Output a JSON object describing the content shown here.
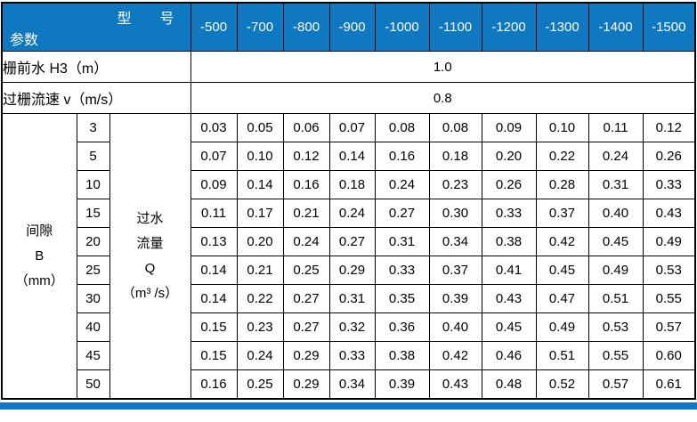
{
  "colors": {
    "header_blue": "#0e78c0",
    "header_text": "#ffffff",
    "border": "#000000",
    "body_text": "#000000"
  },
  "table": {
    "corner_top": "型　　号",
    "corner_bottom": "参数",
    "models": [
      "-500",
      "-700",
      "-800",
      "-900",
      "-1000",
      "-1100",
      "-1200",
      "-1300",
      "-1400",
      "-1500"
    ],
    "param_rows": [
      {
        "label": "栅前水 H3（m）",
        "value": "1.0"
      },
      {
        "label": "过栅流速 v（m/s）",
        "value": "0.8"
      }
    ],
    "gap_header_lines": [
      "间隙",
      "B",
      "（mm）"
    ],
    "flow_header_lines": [
      "过水",
      "流量",
      "Q",
      "（m³ /s）"
    ],
    "data_rows": [
      {
        "gap": "3",
        "values": [
          "0.03",
          "0.05",
          "0.06",
          "0.07",
          "0.08",
          "0.08",
          "0.09",
          "0.10",
          "0.11",
          "0.12"
        ]
      },
      {
        "gap": "5",
        "values": [
          "0.07",
          "0.10",
          "0.12",
          "0.14",
          "0.16",
          "0.18",
          "0.20",
          "0.22",
          "0.24",
          "0.26"
        ]
      },
      {
        "gap": "10",
        "values": [
          "0.09",
          "0.14",
          "0.16",
          "0.18",
          "0.24",
          "0.23",
          "0.26",
          "0.28",
          "0.31",
          "0.33"
        ]
      },
      {
        "gap": "15",
        "values": [
          "0.11",
          "0.17",
          "0.21",
          "0.24",
          "0.27",
          "0.30",
          "0.33",
          "0.37",
          "0.40",
          "0.43"
        ]
      },
      {
        "gap": "20",
        "values": [
          "0.13",
          "0.20",
          "0.24",
          "0.27",
          "0.31",
          "0.34",
          "0.38",
          "0.42",
          "0.45",
          "0.49"
        ]
      },
      {
        "gap": "25",
        "values": [
          "0.14",
          "0.21",
          "0.25",
          "0.29",
          "0.33",
          "0.37",
          "0.41",
          "0.45",
          "0.49",
          "0.53"
        ]
      },
      {
        "gap": "30",
        "values": [
          "0.14",
          "0.22",
          "0.27",
          "0.31",
          "0.35",
          "0.39",
          "0.43",
          "0.47",
          "0.51",
          "0.55"
        ]
      },
      {
        "gap": "40",
        "values": [
          "0.15",
          "0.23",
          "0.27",
          "0.32",
          "0.36",
          "0.40",
          "0.45",
          "0.49",
          "0.53",
          "0.57"
        ]
      },
      {
        "gap": "45",
        "values": [
          "0.15",
          "0.24",
          "0.29",
          "0.33",
          "0.38",
          "0.42",
          "0.46",
          "0.51",
          "0.55",
          "0.60"
        ]
      },
      {
        "gap": "50",
        "values": [
          "0.16",
          "0.25",
          "0.29",
          "0.34",
          "0.39",
          "0.43",
          "0.48",
          "0.52",
          "0.57",
          "0.61"
        ]
      }
    ]
  }
}
